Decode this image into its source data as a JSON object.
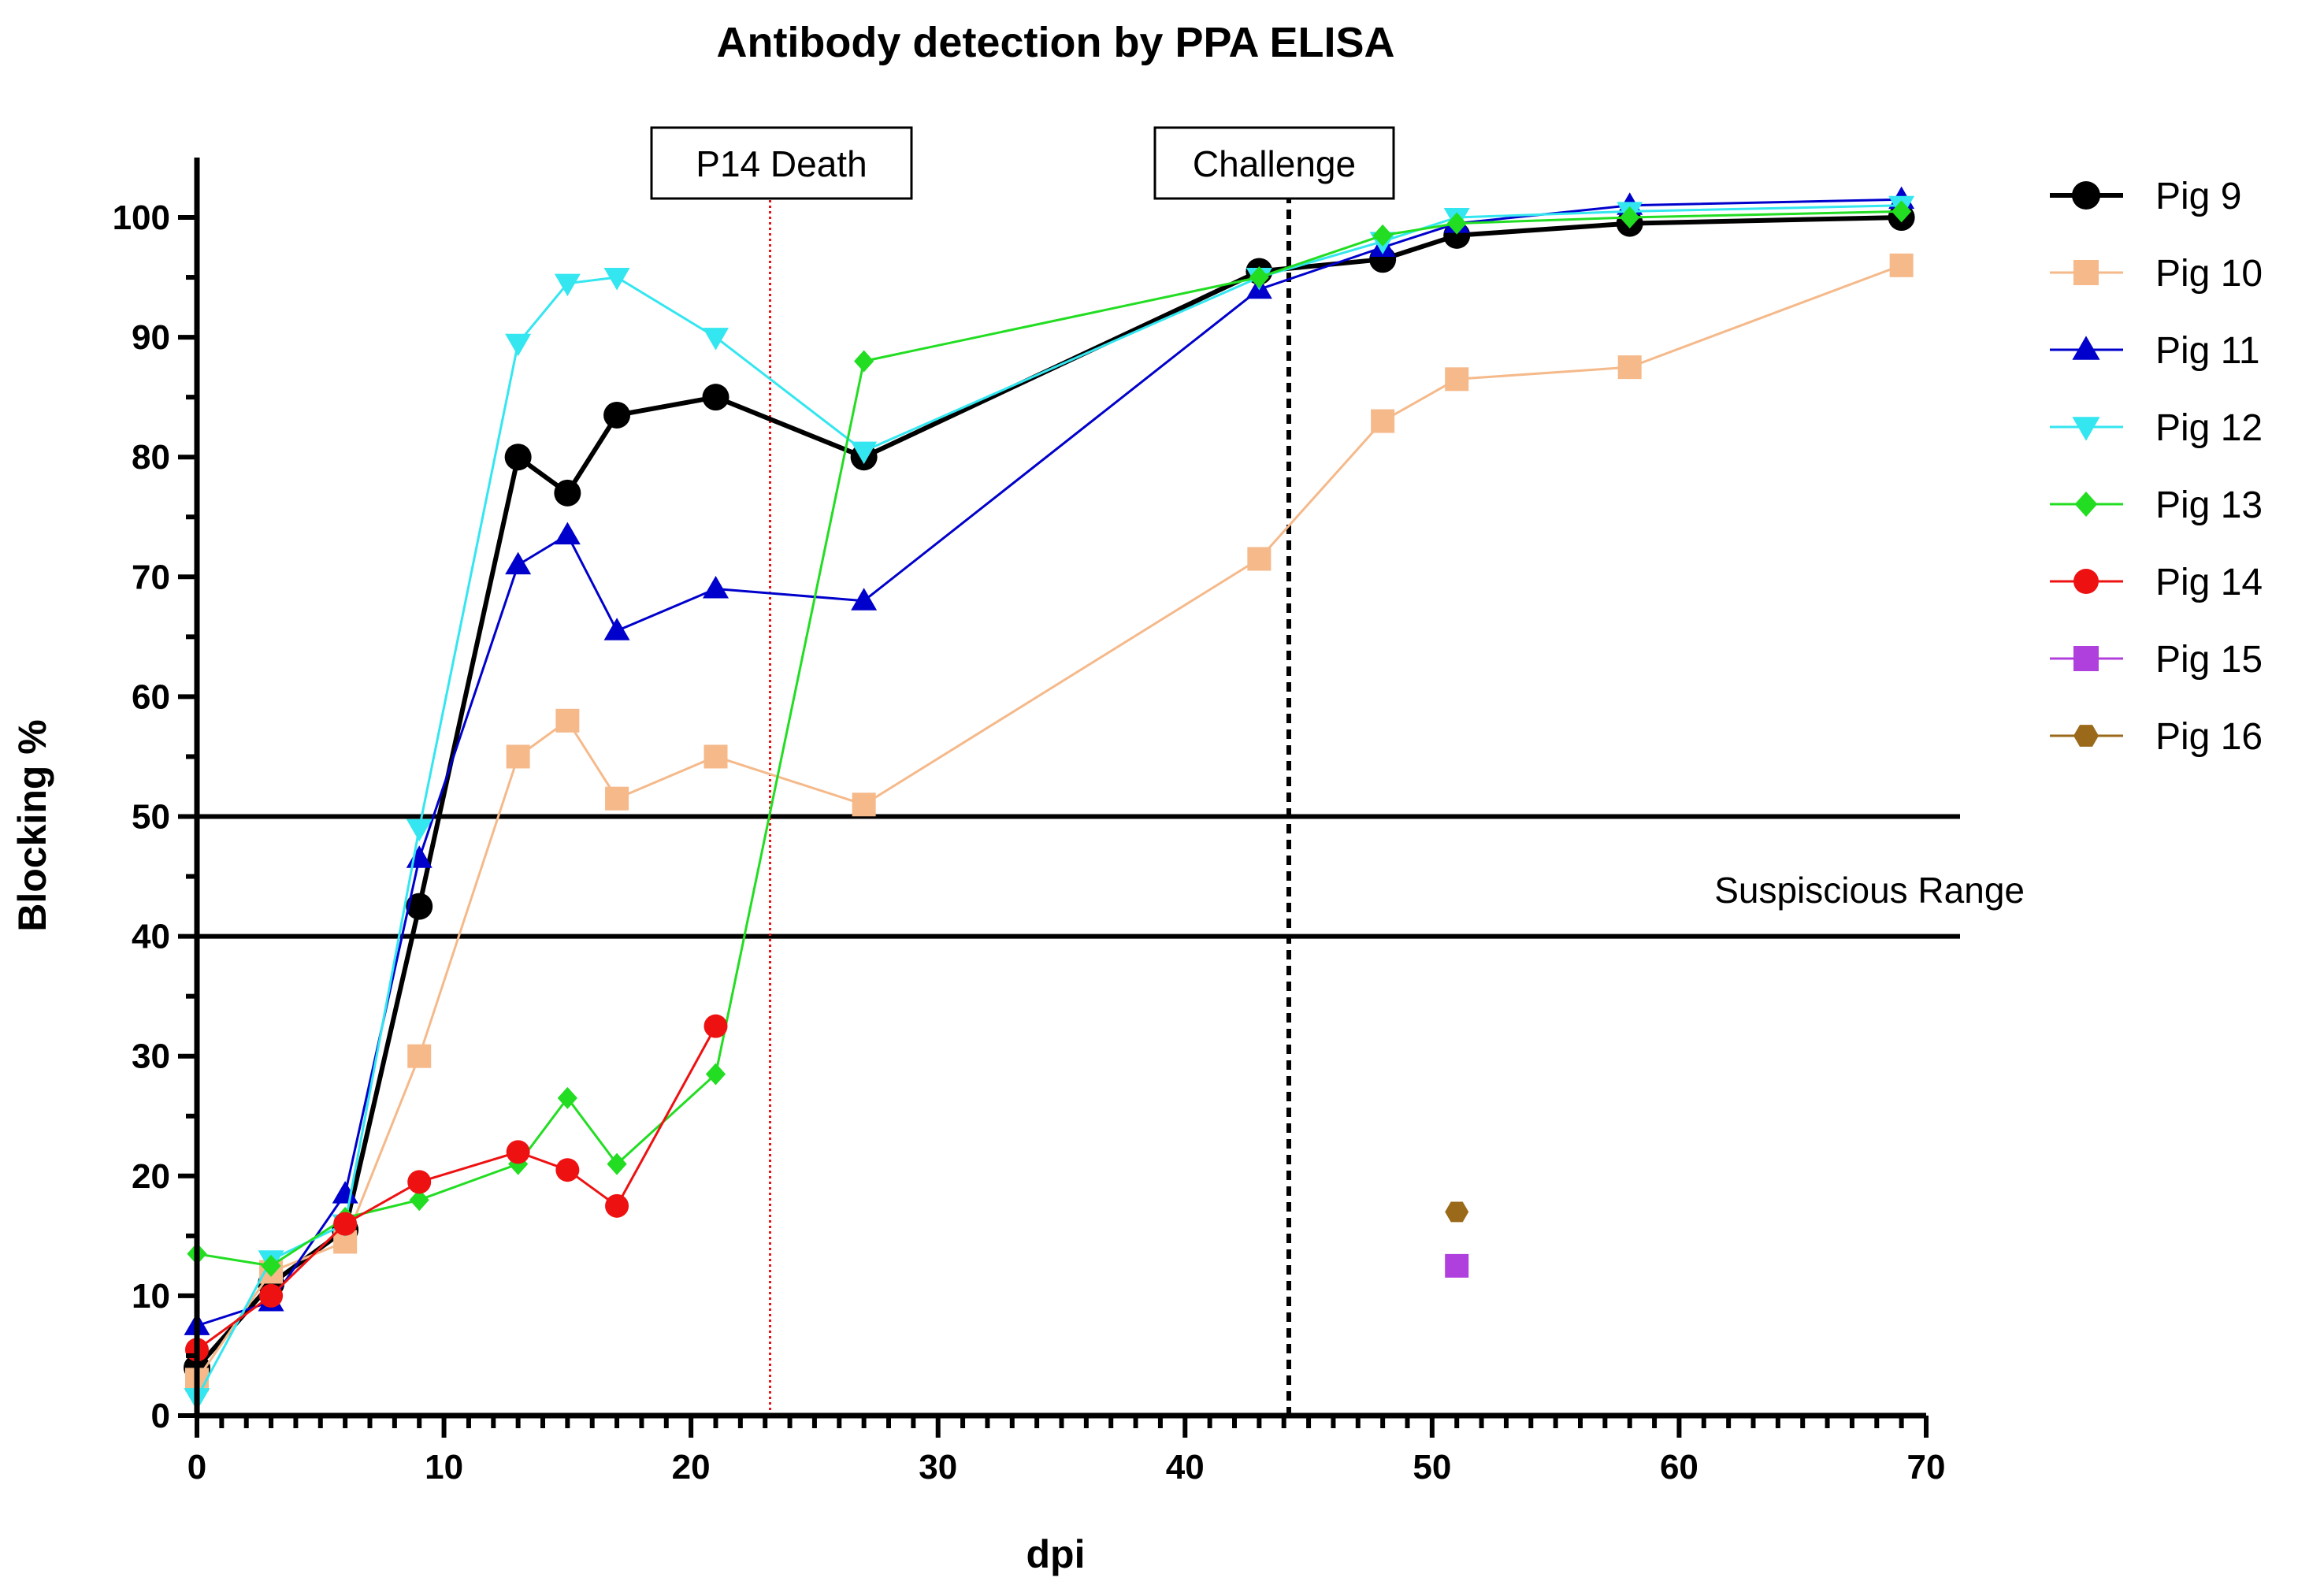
{
  "chart_data": {
    "type": "line",
    "title": "Antibody detection by PPA ELISA",
    "xlabel": "dpi",
    "ylabel": "Blocking %",
    "xlim": [
      0,
      70
    ],
    "ylim": [
      0,
      100
    ],
    "xticks": [
      0,
      10,
      20,
      30,
      40,
      50,
      60,
      70
    ],
    "yticks": [
      0,
      10,
      20,
      30,
      40,
      50,
      60,
      70,
      80,
      90,
      100
    ],
    "grid": false,
    "legend_position": "right",
    "series": [
      {
        "name": "Pig 9",
        "color": "#000000",
        "marker": "circle",
        "x": [
          0,
          3,
          6,
          9,
          13,
          15,
          17,
          21,
          27,
          43,
          48,
          51,
          58,
          69
        ],
        "y": [
          4,
          11,
          15.5,
          42.5,
          80,
          77,
          83.5,
          85,
          80,
          95.5,
          96.5,
          98.5,
          99.5,
          100
        ]
      },
      {
        "name": "Pig 10",
        "color": "#f5b98a",
        "marker": "square",
        "x": [
          0,
          3,
          6,
          9,
          13,
          15,
          17,
          21,
          27,
          43,
          48,
          51,
          58,
          69
        ],
        "y": [
          3,
          12,
          14.5,
          30,
          55,
          58,
          51.5,
          55,
          51,
          71.5,
          83,
          86.5,
          87.5,
          96
        ]
      },
      {
        "name": "Pig 11",
        "color": "#0000cc",
        "marker": "triangle-up",
        "x": [
          0,
          3,
          6,
          9,
          13,
          15,
          17,
          21,
          27,
          43,
          48,
          51,
          58,
          69
        ],
        "y": [
          7.5,
          9.5,
          18.5,
          46.5,
          71,
          73.5,
          65.5,
          69,
          68,
          94,
          97.5,
          99.5,
          101,
          101.5
        ]
      },
      {
        "name": "Pig 12",
        "color": "#33e6f0",
        "marker": "triangle-down",
        "x": [
          0,
          3,
          6,
          9,
          13,
          15,
          17,
          21,
          27,
          43,
          48,
          51,
          58,
          69
        ],
        "y": [
          1.5,
          13,
          16,
          49,
          89.5,
          94.5,
          95,
          90,
          80.5,
          95,
          98,
          100,
          100.5,
          101
        ]
      },
      {
        "name": "Pig 13",
        "color": "#22dd22",
        "marker": "diamond",
        "x": [
          0,
          3,
          6,
          9,
          13,
          15,
          17,
          21,
          27,
          43,
          48,
          51,
          58,
          69
        ],
        "y": [
          13.5,
          12.5,
          16.5,
          18,
          21,
          26.5,
          21,
          28.5,
          88,
          95,
          98.5,
          99.5,
          100,
          100.5
        ]
      },
      {
        "name": "Pig 14",
        "color": "#ee1111",
        "marker": "circle",
        "x": [
          0,
          3,
          6,
          9,
          13,
          15,
          17,
          21
        ],
        "y": [
          5.5,
          10,
          16,
          19.5,
          22,
          20.5,
          17.5,
          32.5
        ]
      },
      {
        "name": "Pig 15",
        "color": "#b040dd",
        "marker": "square",
        "x": [
          51
        ],
        "y": [
          12.5
        ]
      },
      {
        "name": "Pig 16",
        "color": "#9a6a1a",
        "marker": "hexagon",
        "x": [
          51
        ],
        "y": [
          17
        ]
      }
    ],
    "annotations": [
      {
        "label": "P14 Death",
        "x": 23.2,
        "line_style": "dotted",
        "color": "#ee1111"
      },
      {
        "label": "Challenge",
        "x": 44.2,
        "line_style": "dashed",
        "color": "#000000"
      }
    ],
    "reference_lines": [
      {
        "y": 50,
        "color": "#000000"
      },
      {
        "y": 40,
        "color": "#000000"
      }
    ],
    "band_label": "Suspiscious Range"
  }
}
